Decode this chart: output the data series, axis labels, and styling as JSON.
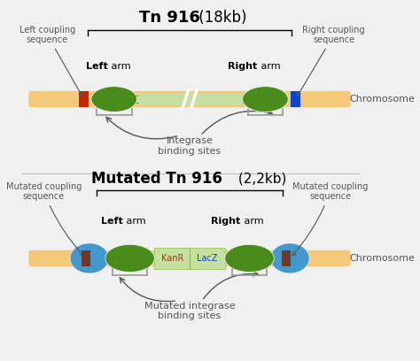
{
  "bg_color": "#f0f0f0",
  "chromosome_color": "#f5c87a",
  "left_arm_color": "#4a8c1c",
  "right_arm_color": "#4a8c1c",
  "center_color": "#c5e0a0",
  "red_box_color": "#cc2200",
  "blue_box_color": "#1144cc",
  "brown_box_color": "#6b3a2a",
  "blue_shape_color": "#4499cc",
  "kanr_color": "#c5e0a0",
  "lacz_color": "#c5e0a0",
  "kanr_text_color": "#cc2200",
  "lacz_text_color": "#1144cc",
  "bracket_color": "#999999",
  "arrow_color": "#555555",
  "label_color": "#555555",
  "divider_color": "#bbbbbb",
  "title1_bold": "Tn 916",
  "title1_normal": " (18kb)",
  "title2_bold": "Mutated Tn 916",
  "title2_normal": " (2,2kb)"
}
